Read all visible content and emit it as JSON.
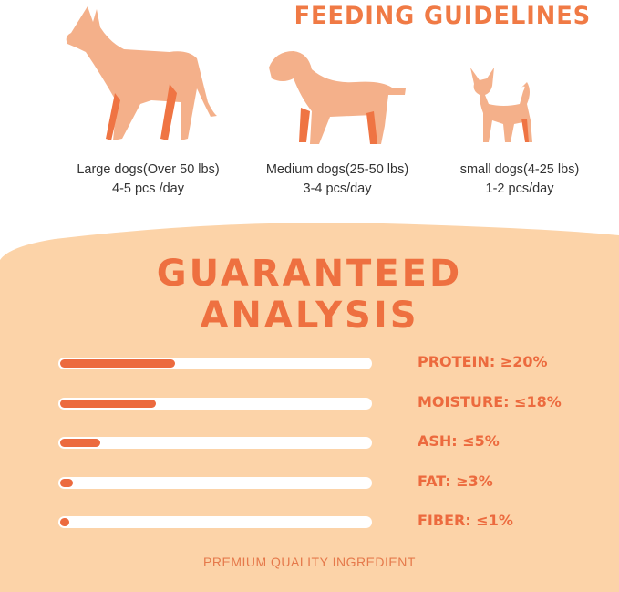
{
  "feeding": {
    "title": "FEEDING GUIDELINES",
    "dogs": [
      {
        "size": "Large dogs(Over 50 lbs)",
        "amount": "4-5 pcs /day"
      },
      {
        "size": "Medium dogs(25-50 lbs)",
        "amount": "3-4 pcs/day"
      },
      {
        "size": "small dogs(4-25 lbs)",
        "amount": "1-2 pcs/day"
      }
    ]
  },
  "analysis": {
    "title_line1": "GUARANTEED",
    "title_line2": "ANALYSIS",
    "items": [
      {
        "label": "PROTEIN: ≥20%",
        "fill": 0.37
      },
      {
        "label": "MOISTURE: ≤18%",
        "fill": 0.31
      },
      {
        "label": "ASH: ≤5%",
        "fill": 0.13
      },
      {
        "label": "FAT: ≥3%",
        "fill": 0.04
      },
      {
        "label": "FIBER: ≤1%",
        "fill": 0.03
      }
    ],
    "footer": "PREMIUM QUALITY INGREDIENT"
  },
  "colors": {
    "accent": "#ec6a3e",
    "silhouette": "#f4b08a",
    "background": "#fcd3a8"
  }
}
